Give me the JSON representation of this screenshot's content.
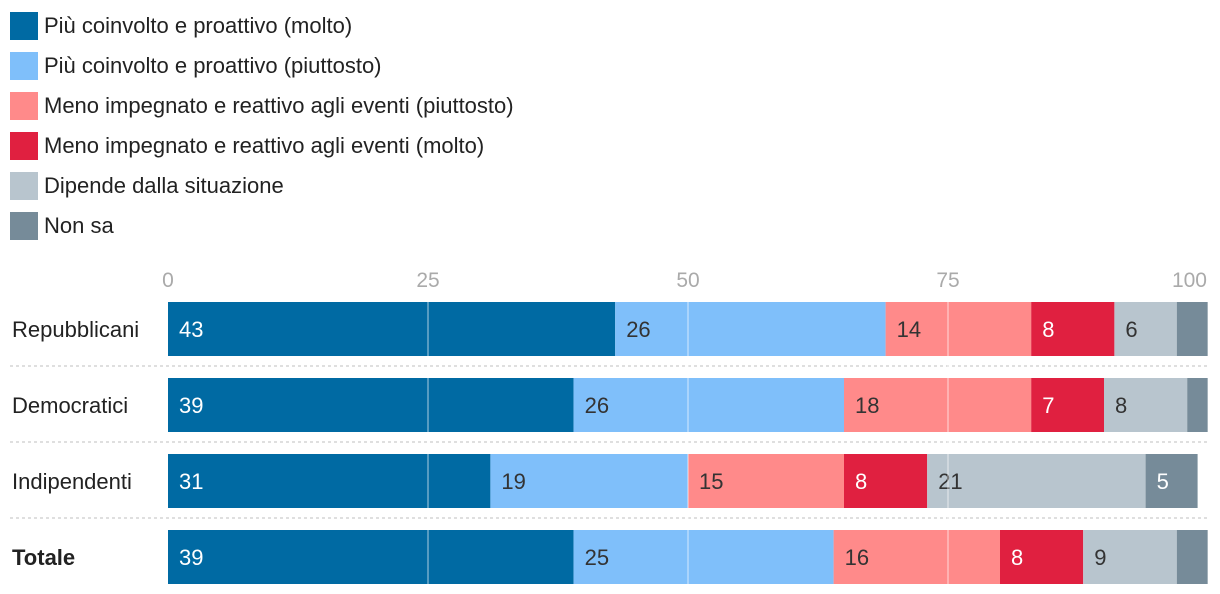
{
  "chart_data": {
    "type": "bar",
    "orientation": "horizontal",
    "stacked": true,
    "xlim": [
      0,
      100
    ],
    "ticks": [
      0,
      25,
      50,
      75,
      100
    ],
    "grid": true,
    "legend_position": "top-left",
    "categories": [
      "Repubblicani",
      "Democratici",
      "Indipendenti",
      "Totale"
    ],
    "emphasized_category": "Totale",
    "series": [
      {
        "name": "Più coinvolto e proattivo (molto)",
        "color": "#006aa3",
        "label_color": "#ffffff",
        "values": [
          43,
          39,
          31,
          39
        ]
      },
      {
        "name": "Più coinvolto e proattivo (piuttosto)",
        "color": "#7fbffa",
        "label_color": "#333333",
        "values": [
          26,
          26,
          19,
          25
        ]
      },
      {
        "name": "Meno impegnato e reattivo agli eventi (piuttosto)",
        "color": "#ff8a8a",
        "label_color": "#333333",
        "values": [
          14,
          18,
          15,
          16
        ]
      },
      {
        "name": "Meno impegnato e reattivo agli eventi (molto)",
        "color": "#e02040",
        "label_color": "#ffffff",
        "values": [
          8,
          7,
          8,
          8
        ]
      },
      {
        "name": "Dipende dalla situazione",
        "color": "#b8c5ce",
        "label_color": "#333333",
        "values": [
          6,
          8,
          21,
          9
        ]
      },
      {
        "name": "Non sa",
        "color": "#768b99",
        "label_color": "#ffffff",
        "values": [
          3,
          2,
          5,
          3
        ]
      }
    ],
    "value_labels": [
      [
        "43",
        "26",
        "14",
        "8",
        "6",
        ""
      ],
      [
        "39",
        "26",
        "18",
        "7",
        "8",
        ""
      ],
      [
        "31",
        "19",
        "15",
        "8",
        "21",
        "5"
      ],
      [
        "39",
        "25",
        "16",
        "8",
        "9",
        ""
      ]
    ]
  }
}
